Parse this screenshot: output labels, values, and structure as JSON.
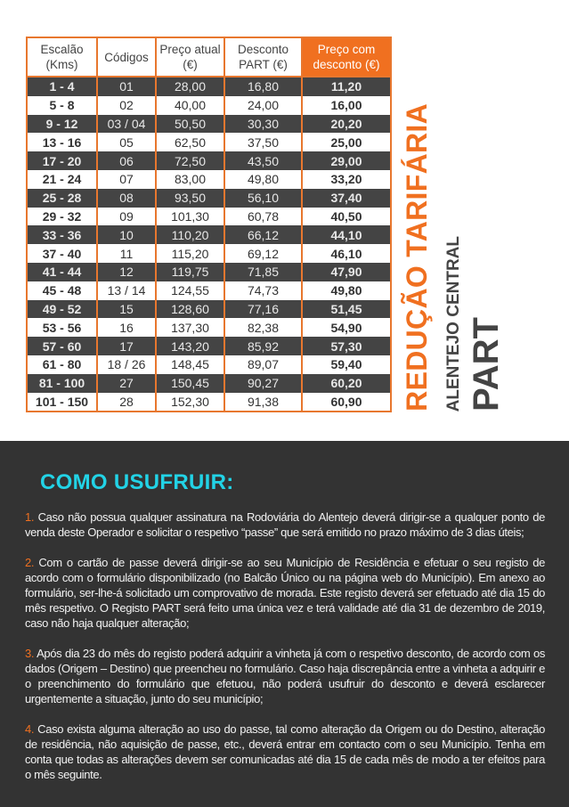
{
  "table": {
    "headers": [
      "Escalão (Kms)",
      "Códigos",
      "Preço atual (€)",
      "Desconto PART (€)",
      "Preço com desconto (€)"
    ],
    "rows": [
      [
        "1 - 4",
        "01",
        "28,00",
        "16,80",
        "11,20"
      ],
      [
        "5 - 8",
        "02",
        "40,00",
        "24,00",
        "16,00"
      ],
      [
        "9 - 12",
        "03 / 04",
        "50,50",
        "30,30",
        "20,20"
      ],
      [
        "13 - 16",
        "05",
        "62,50",
        "37,50",
        "25,00"
      ],
      [
        "17 - 20",
        "06",
        "72,50",
        "43,50",
        "29,00"
      ],
      [
        "21 - 24",
        "07",
        "83,00",
        "49,80",
        "33,20"
      ],
      [
        "25 - 28",
        "08",
        "93,50",
        "56,10",
        "37,40"
      ],
      [
        "29 - 32",
        "09",
        "101,30",
        "60,78",
        "40,50"
      ],
      [
        "33 - 36",
        "10",
        "110,20",
        "66,12",
        "44,10"
      ],
      [
        "37 - 40",
        "11",
        "115,20",
        "69,12",
        "46,10"
      ],
      [
        "41 - 44",
        "12",
        "119,75",
        "71,85",
        "47,90"
      ],
      [
        "45 - 48",
        "13 / 14",
        "124,55",
        "74,73",
        "49,80"
      ],
      [
        "49 - 52",
        "15",
        "128,60",
        "77,16",
        "51,45"
      ],
      [
        "53 - 56",
        "16",
        "137,30",
        "82,38",
        "54,90"
      ],
      [
        "57 - 60",
        "17",
        "143,20",
        "85,92",
        "57,30"
      ],
      [
        "61 - 80",
        "18 / 26",
        "148,45",
        "89,07",
        "59,40"
      ],
      [
        "81 - 100",
        "27",
        "150,45",
        "90,27",
        "60,20"
      ],
      [
        "101 - 150",
        "28",
        "152,30",
        "91,38",
        "60,90"
      ]
    ]
  },
  "side_title": {
    "line1": "REDUÇÃO TARIFÁRIA",
    "line2": "ALENTEJO CENTRAL",
    "line3": "PART"
  },
  "how_to": {
    "title": "COMO USUFRUIR:",
    "items": [
      {
        "num": "1.",
        "text": " Caso não possua qualquer assinatura na Rodoviária do Alentejo deverá dirigir-se a qualquer ponto de venda deste Operador e solicitar o respetivo “passe” que será emitido no prazo máximo de 3 dias úteis;"
      },
      {
        "num": "2.",
        "text": " Com o cartão de passe deverá dirigir-se ao seu Município de Residência e efetuar o seu registo de acordo com o formulário disponibilizado (no Balcão Único ou na página web do Município). Em anexo ao formulário, ser-lhe-á solicitado um comprovativo de morada. Este registo deverá ser efetuado até dia 15 do mês respetivo. O Registo PART será feito uma única vez e terá validade até dia 31 de dezembro de 2019, caso não haja qualquer alteração;"
      },
      {
        "num": "3.",
        "text": " Após dia 23 do mês do registo poderá adquirir a vinheta já com o respetivo desconto, de acordo com os dados (Origem – Destino) que preencheu no formulário. Caso haja discrepância entre a vinheta a adquirir e o preenchimento do formulário que efetuou, não poderá usufruir do desconto e deverá esclarecer urgentemente a situação, junto do seu município;"
      },
      {
        "num": "4.",
        "text": " Caso exista alguma alteração ao uso do passe, tal como alteração da Origem ou do Destino, alteração de residência, não aquisição de passe, etc., deverá entrar em contacto com o seu Município. Tenha em conta que todas as alterações devem ser comunicadas até dia 15 de cada mês de modo a ter efeitos para o mês seguinte."
      }
    ]
  },
  "colors": {
    "accent": "#f07020",
    "title": "#22d3e6",
    "dark_bg": "#333333",
    "row_dark": "#444444"
  }
}
